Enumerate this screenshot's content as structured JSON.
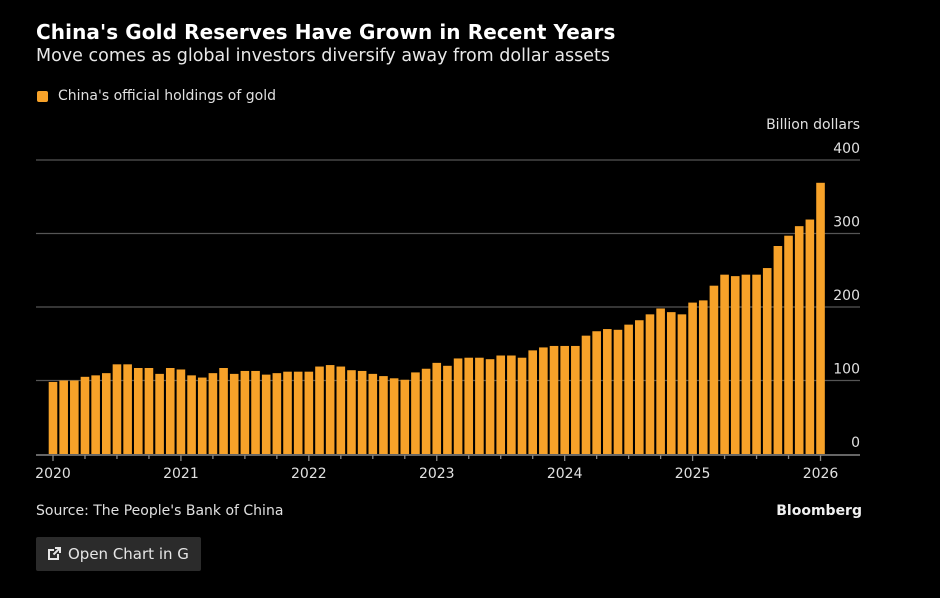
{
  "header": {
    "title": "China's Gold Reserves Have Grown in Recent Years",
    "subtitle": "Move comes as global investors diversify away from dollar assets"
  },
  "footer": {
    "source": "Source: The People's Bank of China",
    "brand": "Bloomberg",
    "open_button_label": "Open Chart in G",
    "open_button_icon": "external-link-icon"
  },
  "colors": {
    "bar": "#f7a229",
    "background": "#000000",
    "grid": "#555555",
    "axis": "#888888"
  },
  "chart_data": {
    "type": "bar",
    "title": "China's Gold Reserves Have Grown in Recent Years",
    "subtitle": "Move comes as global investors diversify away from dollar assets",
    "xlabel": "",
    "ylabel": "Billion dollars",
    "ylim": [
      0,
      400
    ],
    "yticks": [
      0,
      100,
      200,
      300,
      400
    ],
    "xticks": [
      "2020",
      "2021",
      "2022",
      "2023",
      "2024",
      "2025",
      "2026"
    ],
    "grid": true,
    "y_axis_side": "right",
    "legend": {
      "placement": "top-left",
      "entries": [
        "China's official holdings of gold"
      ]
    },
    "series": [
      {
        "name": "China's official holdings of gold",
        "start": "2020-01",
        "frequency": "monthly",
        "values": [
          98,
          100,
          100,
          105,
          107,
          110,
          122,
          122,
          117,
          117,
          109,
          117,
          115,
          107,
          104,
          110,
          117,
          109,
          113,
          113,
          108,
          110,
          112,
          112,
          112,
          119,
          121,
          119,
          114,
          113,
          109,
          106,
          103,
          101,
          111,
          116,
          124,
          120,
          130,
          131,
          131,
          129,
          134,
          134,
          131,
          141,
          145,
          147,
          147,
          147,
          161,
          167,
          170,
          169,
          176,
          182,
          190,
          198,
          193,
          190,
          206,
          209,
          229,
          244,
          242,
          244,
          244,
          253,
          283,
          297,
          310,
          319,
          369
        ]
      }
    ]
  }
}
